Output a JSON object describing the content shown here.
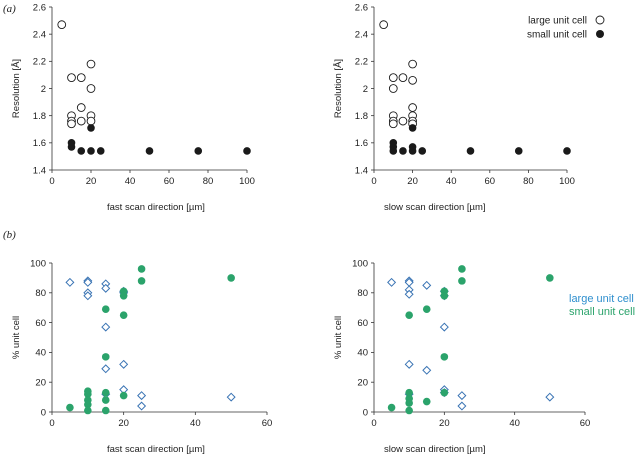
{
  "panel_labels": [
    "(a)",
    "(b)"
  ],
  "colors": {
    "large": "#3a74b4",
    "small": "#2ba36b",
    "large_text": "#2f8fce",
    "small_text": "#2ba36b",
    "res": "#1a1a1a"
  },
  "chart_data": [
    {
      "type": "scatter",
      "panel": "(a)",
      "xlabel": "fast scan direction [µm]",
      "ylabel": "Resolution [Å]",
      "xlim": [
        0,
        100
      ],
      "ylim": [
        1.4,
        2.6
      ],
      "xticks": [
        "0",
        "20",
        "40",
        "60",
        "80",
        "100"
      ],
      "yticks": [
        "1.4",
        "1.6",
        "1.8",
        "2",
        "2.2",
        "2.4",
        "2.6"
      ],
      "legend": {
        "placement": "none"
      },
      "series": [
        {
          "marker": "open-circle",
          "x": [
            5,
            10,
            10,
            10,
            10,
            15,
            15,
            15,
            20,
            20,
            20,
            20
          ],
          "y": [
            2.47,
            2.08,
            1.8,
            1.76,
            1.74,
            2.08,
            1.86,
            1.76,
            2.18,
            2.0,
            1.8,
            1.76
          ]
        },
        {
          "marker": "filled-circle",
          "x": [
            10,
            10,
            15,
            20,
            20,
            25,
            50,
            75,
            100
          ],
          "y": [
            1.6,
            1.57,
            1.54,
            1.71,
            1.54,
            1.54,
            1.54,
            1.54,
            1.54
          ]
        }
      ]
    },
    {
      "type": "scatter",
      "panel": "(a)",
      "xlabel": "slow scan direction [µm]",
      "ylabel": "Resolution [Å]",
      "xlim": [
        0,
        100
      ],
      "ylim": [
        1.4,
        2.6
      ],
      "xticks": [
        "0",
        "20",
        "40",
        "60",
        "80",
        "100"
      ],
      "yticks": [
        "1.4",
        "1.6",
        "1.8",
        "2",
        "2.2",
        "2.4",
        "2.6"
      ],
      "legend": {
        "placement": "top-right",
        "entries": [
          "large unit cell",
          "small unit cell"
        ]
      },
      "series": [
        {
          "name": "large unit cell",
          "marker": "open-circle",
          "x": [
            5,
            10,
            10,
            10,
            10,
            10,
            15,
            15,
            20,
            20,
            20,
            20,
            20,
            20
          ],
          "y": [
            2.47,
            2.08,
            2.0,
            1.8,
            1.76,
            1.74,
            2.08,
            1.76,
            2.18,
            2.06,
            1.86,
            1.8,
            1.76,
            1.74
          ]
        },
        {
          "name": "small unit cell",
          "marker": "filled-circle",
          "x": [
            10,
            10,
            10,
            15,
            20,
            20,
            20,
            25,
            50,
            75,
            100
          ],
          "y": [
            1.6,
            1.57,
            1.54,
            1.54,
            1.71,
            1.57,
            1.54,
            1.54,
            1.54,
            1.54,
            1.54
          ]
        }
      ]
    },
    {
      "type": "scatter",
      "panel": "(b)",
      "xlabel": "fast scan direction [µm]",
      "ylabel": "% unit cell",
      "xlim": [
        0,
        60
      ],
      "ylim": [
        0,
        100
      ],
      "xticks": [
        "0",
        "20",
        "40",
        "60"
      ],
      "yticks": [
        "0",
        "20",
        "40",
        "60",
        "80",
        "100"
      ],
      "legend": {
        "placement": "none"
      },
      "series": [
        {
          "marker": "open-diamond",
          "x": [
            5,
            10,
            10,
            10,
            10,
            15,
            15,
            15,
            15,
            15,
            20,
            20,
            20,
            20,
            25,
            25,
            50
          ],
          "y": [
            87,
            88,
            87,
            80,
            78,
            86,
            83,
            57,
            29,
            12,
            81,
            80,
            32,
            15,
            11,
            4,
            10
          ]
        },
        {
          "marker": "filled-circle",
          "x": [
            5,
            10,
            10,
            10,
            10,
            10,
            15,
            15,
            15,
            15,
            15,
            20,
            20,
            20,
            20,
            25,
            25,
            50
          ],
          "y": [
            3,
            14,
            12,
            8,
            5,
            1,
            69,
            37,
            13,
            8,
            1,
            81,
            78,
            65,
            11,
            96,
            88,
            90
          ]
        }
      ]
    },
    {
      "type": "scatter",
      "panel": "(b)",
      "xlabel": "slow scan direction [µm]",
      "ylabel": "% unit cell",
      "xlim": [
        0,
        60
      ],
      "ylim": [
        0,
        100
      ],
      "xticks": [
        "0",
        "20",
        "40",
        "60"
      ],
      "yticks": [
        "0",
        "20",
        "40",
        "60",
        "80",
        "100"
      ],
      "legend": {
        "placement": "right",
        "entries": [
          "large unit cell",
          "small unit cell"
        ]
      },
      "series": [
        {
          "name": "large unit cell",
          "marker": "open-diamond",
          "x": [
            5,
            10,
            10,
            10,
            10,
            10,
            10,
            15,
            15,
            20,
            20,
            20,
            20,
            20,
            25,
            25,
            50
          ],
          "y": [
            87,
            88,
            87,
            82,
            79,
            32,
            12,
            85,
            28,
            81,
            78,
            57,
            15,
            13,
            11,
            4,
            10
          ]
        },
        {
          "name": "small unit cell",
          "marker": "filled-circle",
          "x": [
            5,
            10,
            10,
            10,
            10,
            10,
            15,
            15,
            20,
            20,
            20,
            20,
            25,
            25,
            50
          ],
          "y": [
            3,
            65,
            13,
            9,
            6,
            1,
            69,
            7,
            81,
            78,
            37,
            13,
            96,
            88,
            90
          ]
        }
      ]
    }
  ]
}
